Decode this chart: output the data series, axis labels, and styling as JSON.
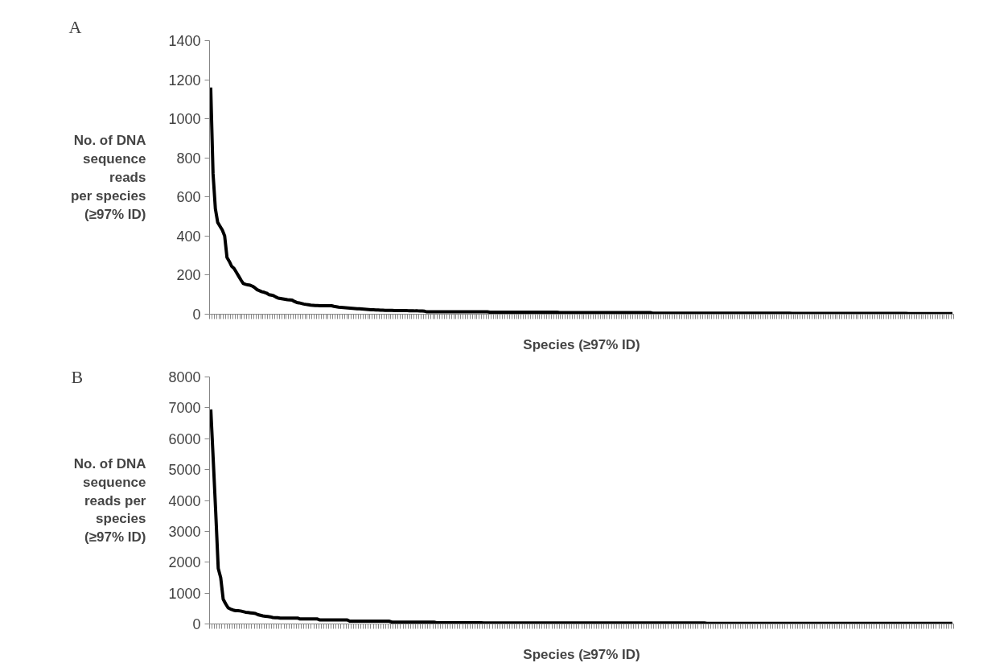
{
  "chart_data": [
    {
      "type": "line",
      "title": "A",
      "xlabel": "Species (≥97% ID)",
      "ylabel": "No. of DNA\nsequence\nreads\nper species\n(≥97% ID)",
      "categories": [
        null,
        null,
        null,
        null,
        null,
        null,
        null,
        null,
        null,
        null,
        null,
        null,
        null,
        null,
        null,
        null,
        null,
        null,
        null,
        null,
        null,
        null,
        null,
        null,
        null,
        null,
        null,
        null,
        null,
        null,
        null,
        null,
        null,
        null,
        null,
        null,
        null,
        null,
        null,
        null,
        null,
        null,
        null,
        null,
        null,
        null,
        null,
        null,
        null,
        null,
        null,
        null,
        null,
        null,
        null,
        null,
        null,
        null,
        null,
        null,
        null,
        null,
        null,
        null,
        null,
        null,
        null,
        null,
        null,
        null,
        null,
        null,
        null,
        null,
        null,
        null,
        null,
        null,
        null,
        null,
        null,
        null,
        null,
        null,
        null,
        null,
        null,
        null,
        null,
        null,
        null,
        null,
        null,
        null,
        null,
        null,
        null,
        null,
        null,
        null,
        null,
        null,
        null,
        null,
        null,
        null,
        null,
        null,
        null,
        null,
        null,
        null,
        null,
        null,
        null,
        null,
        null,
        null,
        null,
        null,
        null,
        null,
        null,
        null,
        null,
        null,
        null,
        null,
        null,
        null,
        null,
        null,
        null,
        null,
        null,
        null,
        null,
        null,
        null,
        null,
        null,
        null,
        null,
        null,
        null,
        null,
        null,
        null,
        null,
        null,
        null,
        null,
        null,
        null,
        null,
        null,
        null,
        null,
        null,
        null,
        null,
        null,
        null,
        null,
        null,
        null,
        null,
        null,
        null,
        null,
        null,
        null,
        null,
        null,
        null,
        null,
        null,
        null,
        null,
        null,
        null,
        null,
        null,
        null,
        null,
        null,
        null,
        null,
        null,
        null,
        null,
        null,
        null,
        null,
        null,
        null,
        null,
        null,
        null,
        null,
        null,
        null,
        null,
        null,
        null,
        null,
        null,
        null,
        null,
        null,
        null,
        null,
        null,
        null,
        null,
        null,
        null,
        null,
        null,
        null,
        null,
        null,
        null,
        null,
        null,
        null,
        null,
        null,
        null,
        null,
        null,
        null,
        null,
        null,
        null,
        null,
        null,
        null,
        null,
        null,
        null,
        null,
        null,
        null,
        null,
        null,
        null,
        null,
        null,
        null,
        null,
        null,
        null,
        null,
        null,
        null,
        null,
        null,
        null,
        null,
        null,
        null,
        null,
        null,
        null,
        null,
        null,
        null,
        null,
        null,
        null,
        null,
        null,
        null,
        null,
        null,
        null,
        null,
        null,
        null,
        null,
        null,
        null,
        null,
        null,
        null,
        null,
        null,
        null,
        null,
        null,
        null,
        null,
        null,
        null,
        null,
        null,
        null,
        null,
        null,
        null,
        null,
        null,
        null,
        null,
        null,
        null,
        null,
        null,
        null,
        null,
        null,
        null,
        null,
        null,
        null,
        null,
        null,
        null,
        null
      ],
      "series": [
        {
          "color": "#000000",
          "values": [
            1160,
            720,
            540,
            470,
            450,
            430,
            400,
            290,
            270,
            245,
            235,
            215,
            195,
            175,
            157,
            153,
            150,
            148,
            143,
            135,
            125,
            120,
            115,
            112,
            108,
            100,
            98,
            95,
            88,
            82,
            80,
            78,
            76,
            74,
            73,
            72,
            65,
            60,
            58,
            55,
            52,
            50,
            48,
            46,
            45,
            44,
            44,
            43,
            43,
            43,
            43,
            43,
            43,
            40,
            38,
            36,
            35,
            34,
            33,
            32,
            31,
            30,
            29,
            28,
            28,
            27,
            26,
            25,
            24,
            23,
            23,
            22,
            22,
            21,
            21,
            20,
            20,
            20,
            20,
            19,
            19,
            19,
            19,
            19,
            19,
            18,
            18,
            18,
            17,
            17,
            16,
            16,
            15,
            12,
            12,
            12,
            12,
            12,
            12,
            12,
            12,
            12,
            12,
            12,
            12,
            12,
            12,
            12,
            12,
            12,
            12,
            12,
            12,
            12,
            12,
            12,
            12,
            12,
            12,
            12,
            10,
            10,
            10,
            10,
            10,
            10,
            10,
            10,
            10,
            10,
            10,
            10,
            10,
            10,
            10,
            10,
            10,
            10,
            10,
            10,
            10,
            10,
            10,
            10,
            10,
            10,
            10,
            10,
            10,
            10,
            8,
            8,
            8,
            8,
            8,
            8,
            8,
            8,
            8,
            8,
            8,
            8,
            8,
            8,
            8,
            8,
            8,
            8,
            8,
            8,
            8,
            8,
            8,
            8,
            8,
            8,
            8,
            8,
            8,
            8,
            8,
            8,
            8,
            8,
            8,
            8,
            8,
            8,
            8,
            8,
            5,
            5,
            5,
            5,
            5,
            5,
            5,
            5,
            5,
            5,
            5,
            5,
            5,
            5,
            5,
            5,
            5,
            5,
            5,
            5,
            5,
            5,
            5,
            5,
            5,
            5,
            5,
            5,
            5,
            5,
            5,
            5,
            5,
            5,
            5,
            5,
            5,
            5,
            5,
            5,
            5,
            5,
            5,
            5,
            5,
            5,
            5,
            5,
            5,
            5,
            5,
            5,
            5,
            5,
            5,
            5,
            5,
            5,
            5,
            5,
            4,
            4,
            4,
            4,
            4,
            4,
            4,
            4,
            4,
            4,
            4,
            4,
            4,
            4,
            4,
            4,
            4,
            4,
            4,
            4,
            4,
            4,
            4,
            4,
            4,
            4,
            4,
            4,
            4,
            4,
            4,
            4,
            4,
            4,
            4,
            4,
            4,
            4,
            4,
            4,
            4,
            4,
            4,
            4,
            4,
            4,
            4,
            4,
            4,
            4,
            3,
            3,
            3,
            3,
            3,
            3,
            3,
            3,
            3,
            3,
            3,
            3,
            3,
            3,
            3,
            3,
            3,
            3,
            3,
            3
          ]
        }
      ],
      "ylim": [
        0,
        1400
      ],
      "yticks": [
        0,
        200,
        400,
        600,
        800,
        1000,
        1200,
        1400
      ],
      "tick_labels": "y"
    },
    {
      "type": "line",
      "title": "B",
      "xlabel": "Species (≥97% ID)",
      "ylabel": "No. of DNA\nsequence\nreads per\nspecies\n(≥97% ID)",
      "categories": [
        null,
        null,
        null,
        null,
        null,
        null,
        null,
        null,
        null,
        null,
        null,
        null,
        null,
        null,
        null,
        null,
        null,
        null,
        null,
        null,
        null,
        null,
        null,
        null,
        null,
        null,
        null,
        null,
        null,
        null,
        null,
        null,
        null,
        null,
        null,
        null,
        null,
        null,
        null,
        null,
        null,
        null,
        null,
        null,
        null,
        null,
        null,
        null,
        null,
        null,
        null,
        null,
        null,
        null,
        null,
        null,
        null,
        null,
        null,
        null,
        null,
        null,
        null,
        null,
        null,
        null,
        null,
        null,
        null,
        null,
        null,
        null,
        null,
        null,
        null,
        null,
        null,
        null,
        null,
        null,
        null,
        null,
        null,
        null,
        null,
        null,
        null,
        null,
        null,
        null,
        null,
        null,
        null,
        null,
        null,
        null,
        null,
        null,
        null,
        null,
        null,
        null,
        null,
        null,
        null,
        null,
        null,
        null,
        null,
        null,
        null,
        null,
        null,
        null,
        null,
        null,
        null,
        null,
        null,
        null,
        null,
        null,
        null,
        null,
        null,
        null,
        null,
        null,
        null,
        null,
        null,
        null,
        null,
        null,
        null,
        null,
        null,
        null,
        null,
        null,
        null,
        null,
        null,
        null,
        null,
        null,
        null,
        null,
        null,
        null,
        null,
        null,
        null,
        null,
        null,
        null,
        null,
        null,
        null,
        null,
        null,
        null,
        null,
        null,
        null,
        null,
        null,
        null,
        null,
        null,
        null,
        null,
        null,
        null,
        null,
        null,
        null,
        null,
        null,
        null,
        null,
        null,
        null,
        null,
        null,
        null,
        null,
        null,
        null,
        null,
        null,
        null,
        null,
        null,
        null,
        null,
        null,
        null,
        null,
        null,
        null,
        null,
        null,
        null,
        null,
        null,
        null,
        null,
        null,
        null,
        null,
        null,
        null,
        null,
        null,
        null,
        null,
        null,
        null,
        null,
        null,
        null,
        null,
        null,
        null,
        null,
        null,
        null,
        null,
        null,
        null,
        null,
        null,
        null,
        null,
        null,
        null,
        null,
        null,
        null,
        null,
        null,
        null,
        null,
        null,
        null,
        null,
        null,
        null,
        null,
        null,
        null,
        null,
        null,
        null,
        null,
        null,
        null,
        null,
        null,
        null,
        null,
        null,
        null,
        null,
        null,
        null,
        null,
        null,
        null,
        null,
        null,
        null,
        null,
        null,
        null,
        null,
        null,
        null,
        null,
        null,
        null,
        null,
        null,
        null,
        null,
        null,
        null,
        null,
        null,
        null,
        null,
        null,
        null,
        null,
        null,
        null,
        null,
        null,
        null
      ],
      "series": [
        {
          "color": "#000000",
          "values": [
            6950,
            5300,
            3600,
            1800,
            1500,
            800,
            650,
            520,
            480,
            450,
            430,
            430,
            420,
            400,
            380,
            370,
            360,
            350,
            340,
            300,
            280,
            260,
            250,
            240,
            230,
            210,
            200,
            200,
            190,
            190,
            190,
            190,
            190,
            190,
            190,
            190,
            160,
            160,
            160,
            160,
            160,
            160,
            160,
            160,
            130,
            130,
            130,
            130,
            130,
            130,
            130,
            130,
            130,
            130,
            130,
            130,
            90,
            90,
            90,
            90,
            90,
            90,
            90,
            90,
            90,
            90,
            90,
            90,
            90,
            90,
            90,
            90,
            90,
            60,
            60,
            60,
            60,
            60,
            60,
            60,
            60,
            60,
            60,
            60,
            60,
            60,
            60,
            60,
            60,
            60,
            60,
            40,
            40,
            40,
            40,
            40,
            40,
            40,
            40,
            40,
            40,
            40,
            40,
            40,
            40,
            40,
            40,
            40,
            40,
            40,
            30,
            30,
            30,
            30,
            30,
            30,
            30,
            30,
            30,
            30,
            30,
            30,
            30,
            30,
            30,
            30,
            30,
            30,
            30,
            30,
            30,
            30,
            30,
            30,
            30,
            30,
            30,
            30,
            30,
            30,
            30,
            30,
            30,
            30,
            30,
            30,
            30,
            30,
            30,
            30,
            30,
            30,
            30,
            30,
            30,
            30,
            30,
            30,
            30,
            30,
            30,
            30,
            30,
            30,
            30,
            30,
            30,
            30,
            30,
            30,
            30,
            30,
            30,
            30,
            30,
            30,
            30,
            30,
            30,
            30,
            30,
            30,
            30,
            30,
            30,
            30,
            30,
            30,
            30,
            30,
            30,
            30,
            30,
            30,
            30,
            30,
            30,
            30,
            30,
            30,
            20,
            20,
            20,
            20,
            20,
            20,
            20,
            20,
            20,
            20,
            20,
            20,
            20,
            20,
            20,
            20,
            20,
            20,
            20,
            20,
            20,
            20,
            20,
            20,
            20,
            20,
            20,
            20,
            20,
            20,
            20,
            20,
            20,
            20,
            20,
            20,
            20,
            20,
            20,
            20,
            20,
            20,
            20,
            20,
            20,
            20,
            20,
            20,
            20,
            20,
            20,
            20,
            20,
            20,
            20,
            20,
            20,
            20,
            20,
            20,
            20,
            20,
            20,
            20,
            20,
            20,
            20,
            20,
            20,
            20,
            20,
            20,
            20,
            20,
            20,
            20,
            20,
            20,
            20,
            20,
            20,
            20,
            20,
            20,
            20,
            20,
            20,
            20,
            20,
            20,
            20,
            20,
            20,
            20,
            20,
            20,
            20,
            20,
            20,
            20
          ]
        }
      ],
      "ylim": [
        0,
        8000
      ],
      "yticks": [
        0,
        1000,
        2000,
        3000,
        4000,
        5000,
        6000,
        7000,
        8000
      ],
      "tick_labels": "y"
    }
  ]
}
